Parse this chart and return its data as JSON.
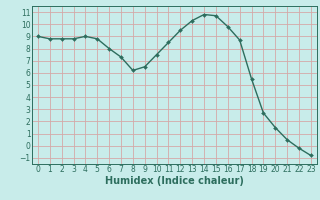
{
  "x": [
    0,
    1,
    2,
    3,
    4,
    5,
    6,
    7,
    8,
    9,
    10,
    11,
    12,
    13,
    14,
    15,
    16,
    17,
    18,
    19,
    20,
    21,
    22,
    23
  ],
  "y": [
    9.0,
    8.8,
    8.8,
    8.8,
    9.0,
    8.8,
    8.0,
    7.3,
    6.2,
    6.5,
    7.5,
    8.5,
    9.5,
    10.3,
    10.8,
    10.7,
    9.8,
    8.7,
    5.5,
    2.7,
    1.5,
    0.5,
    -0.2,
    -0.8
  ],
  "xlabel": "Humidex (Indice chaleur)",
  "line_color": "#2d6e5e",
  "marker": "D",
  "marker_size": 2.0,
  "bg_color": "#c8ecea",
  "grid_color": "#d4a8a8",
  "ylim": [
    -1.5,
    11.5
  ],
  "xlim": [
    -0.5,
    23.5
  ],
  "yticks": [
    -1,
    0,
    1,
    2,
    3,
    4,
    5,
    6,
    7,
    8,
    9,
    10,
    11
  ],
  "xticks": [
    0,
    1,
    2,
    3,
    4,
    5,
    6,
    7,
    8,
    9,
    10,
    11,
    12,
    13,
    14,
    15,
    16,
    17,
    18,
    19,
    20,
    21,
    22,
    23
  ],
  "tick_fontsize": 5.5,
  "xlabel_fontsize": 7.0,
  "line_width": 1.0
}
